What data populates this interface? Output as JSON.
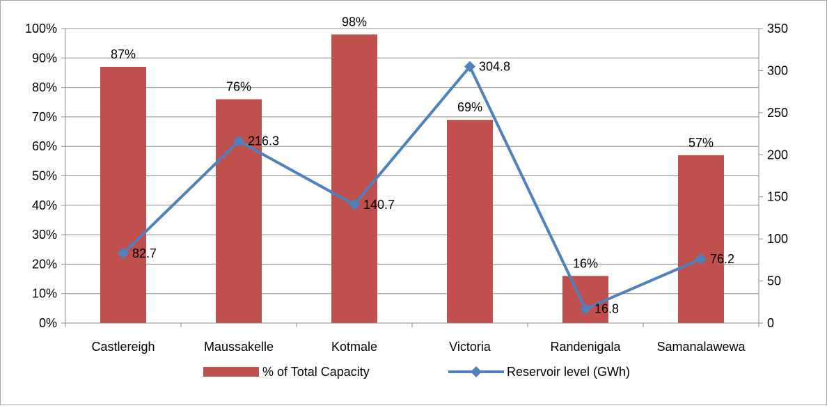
{
  "chart_data": {
    "type": "bar",
    "title": "",
    "categories": [
      "Castlereigh",
      "Maussakelle",
      "Kotmale",
      "Victoria",
      "Randenigala",
      "Samanalawewa"
    ],
    "series": [
      {
        "name": "% of Total Capacity",
        "type": "bar",
        "axis": "left",
        "color": "#c0504d",
        "values": [
          87,
          76,
          98,
          69,
          16,
          57
        ],
        "labels": [
          "87%",
          "76%",
          "98%",
          "69%",
          "16%",
          "57%"
        ]
      },
      {
        "name": "Reservoir level (GWh)",
        "type": "line",
        "axis": "right",
        "color": "#4f81bd",
        "marker": "diamond",
        "values": [
          82.7,
          216.3,
          140.7,
          304.8,
          16.8,
          76.2
        ],
        "labels": [
          "82.7",
          "216.3",
          "140.7",
          "304.8",
          "16.8",
          "76.2"
        ]
      }
    ],
    "y_left": {
      "min": 0,
      "max": 100,
      "step": 10,
      "tick_labels": [
        "0%",
        "10%",
        "20%",
        "30%",
        "40%",
        "50%",
        "60%",
        "70%",
        "80%",
        "90%",
        "100%"
      ]
    },
    "y_right": {
      "min": 0,
      "max": 350,
      "step": 50,
      "tick_labels": [
        "0",
        "50",
        "100",
        "150",
        "200",
        "250",
        "300",
        "350"
      ]
    },
    "grid": true,
    "legend_position": "bottom"
  }
}
